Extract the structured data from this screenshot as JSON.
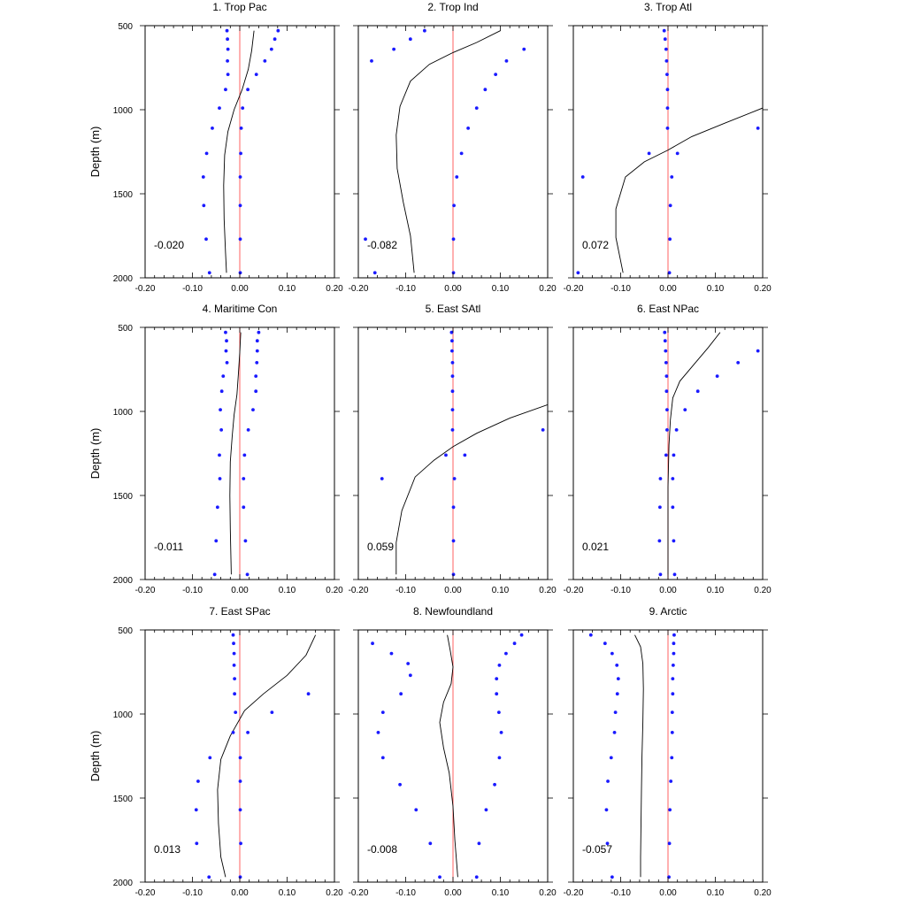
{
  "chart_data": {
    "type": "scatter",
    "ylabel": "Depth (m)",
    "ylim": [
      2000,
      500
    ],
    "xlim": [
      -0.2,
      0.2
    ],
    "x_ticklabels": [
      "-0.20",
      "-0.10",
      "0.00",
      "0.10",
      "0.20"
    ],
    "y_ticklabels": [
      "500",
      "1000",
      "1500",
      "2000"
    ],
    "x_ticks": [
      -0.2,
      -0.1,
      0.0,
      0.1,
      0.2
    ],
    "y_ticks": [
      500,
      1000,
      1500,
      2000
    ],
    "zero_line_color": "#ff6060",
    "point_color": "#1a1aff",
    "line_color": "#000000",
    "panels": [
      {
        "title": "1. Trop Pac",
        "annotation": "-0.020",
        "lower_points": [
          [
            -0.027,
            530
          ],
          [
            -0.026,
            580
          ],
          [
            -0.025,
            640
          ],
          [
            -0.026,
            710
          ],
          [
            -0.025,
            790
          ],
          [
            -0.03,
            880
          ],
          [
            -0.043,
            990
          ],
          [
            -0.058,
            1110
          ],
          [
            -0.07,
            1260
          ],
          [
            -0.077,
            1400
          ],
          [
            -0.076,
            1570
          ],
          [
            -0.071,
            1770
          ],
          [
            -0.064,
            1970
          ]
        ],
        "upper_points": [
          [
            0.081,
            530
          ],
          [
            0.074,
            580
          ],
          [
            0.067,
            640
          ],
          [
            0.053,
            710
          ],
          [
            0.035,
            790
          ],
          [
            0.017,
            880
          ],
          [
            0.006,
            990
          ],
          [
            0.003,
            1110
          ],
          [
            0.002,
            1260
          ],
          [
            0.001,
            1400
          ],
          [
            0.001,
            1570
          ],
          [
            0.001,
            1770
          ],
          [
            0.001,
            1970
          ]
        ],
        "line": [
          [
            0.03,
            530
          ],
          [
            0.025,
            650
          ],
          [
            0.018,
            760
          ],
          [
            0.005,
            880
          ],
          [
            -0.012,
            1000
          ],
          [
            -0.025,
            1130
          ],
          [
            -0.032,
            1270
          ],
          [
            -0.034,
            1450
          ],
          [
            -0.033,
            1650
          ],
          [
            -0.03,
            1850
          ],
          [
            -0.028,
            1970
          ]
        ]
      },
      {
        "title": "2. Trop Ind",
        "annotation": "-0.082",
        "lower_points": [
          [
            -0.06,
            530
          ],
          [
            -0.09,
            580
          ],
          [
            -0.125,
            640
          ],
          [
            -0.172,
            710
          ],
          [
            -0.185,
            1770
          ],
          [
            -0.165,
            1970
          ]
        ],
        "upper_points": [
          [
            0.15,
            640
          ],
          [
            0.113,
            710
          ],
          [
            0.09,
            790
          ],
          [
            0.068,
            880
          ],
          [
            0.05,
            990
          ],
          [
            0.032,
            1110
          ],
          [
            0.018,
            1260
          ],
          [
            0.008,
            1400
          ],
          [
            0.002,
            1570
          ],
          [
            0.001,
            1770
          ],
          [
            0.001,
            1970
          ]
        ],
        "line": [
          [
            0.1,
            530
          ],
          [
            0.05,
            600
          ],
          [
            0.0,
            660
          ],
          [
            -0.05,
            730
          ],
          [
            -0.09,
            830
          ],
          [
            -0.112,
            980
          ],
          [
            -0.12,
            1150
          ],
          [
            -0.118,
            1350
          ],
          [
            -0.105,
            1550
          ],
          [
            -0.09,
            1750
          ],
          [
            -0.082,
            1970
          ]
        ]
      },
      {
        "title": "3. Trop Atl",
        "annotation": "0.072",
        "lower_points": [
          [
            -0.008,
            530
          ],
          [
            -0.006,
            580
          ],
          [
            -0.004,
            640
          ],
          [
            -0.003,
            710
          ],
          [
            -0.002,
            790
          ],
          [
            -0.001,
            880
          ],
          [
            -0.001,
            990
          ],
          [
            -0.001,
            1110
          ],
          [
            -0.04,
            1260
          ],
          [
            -0.18,
            1400
          ],
          [
            -0.19,
            1970
          ]
        ],
        "upper_points": [
          [
            0.19,
            1110
          ],
          [
            0.02,
            1260
          ],
          [
            0.008,
            1400
          ],
          [
            0.005,
            1570
          ],
          [
            0.004,
            1770
          ],
          [
            0.003,
            1970
          ]
        ],
        "line": [
          [
            0.2,
            990
          ],
          [
            0.12,
            1080
          ],
          [
            0.05,
            1160
          ],
          [
            0.0,
            1240
          ],
          [
            -0.05,
            1310
          ],
          [
            -0.09,
            1400
          ],
          [
            -0.11,
            1590
          ],
          [
            -0.11,
            1760
          ],
          [
            -0.095,
            1970
          ]
        ]
      },
      {
        "title": "4. Maritime Con",
        "annotation": "-0.011",
        "lower_points": [
          [
            -0.03,
            530
          ],
          [
            -0.028,
            580
          ],
          [
            -0.029,
            640
          ],
          [
            -0.027,
            710
          ],
          [
            -0.035,
            790
          ],
          [
            -0.038,
            880
          ],
          [
            -0.041,
            990
          ],
          [
            -0.039,
            1110
          ],
          [
            -0.043,
            1260
          ],
          [
            -0.042,
            1400
          ],
          [
            -0.047,
            1570
          ],
          [
            -0.05,
            1770
          ],
          [
            -0.053,
            1970
          ]
        ],
        "upper_points": [
          [
            0.04,
            530
          ],
          [
            0.037,
            580
          ],
          [
            0.037,
            640
          ],
          [
            0.036,
            710
          ],
          [
            0.034,
            790
          ],
          [
            0.034,
            880
          ],
          [
            0.028,
            990
          ],
          [
            0.018,
            1110
          ],
          [
            0.01,
            1260
          ],
          [
            0.008,
            1400
          ],
          [
            0.008,
            1570
          ],
          [
            0.012,
            1770
          ],
          [
            0.016,
            1970
          ]
        ],
        "line": [
          [
            0.002,
            530
          ],
          [
            0.0,
            650
          ],
          [
            -0.003,
            780
          ],
          [
            -0.006,
            900
          ],
          [
            -0.012,
            1020
          ],
          [
            -0.016,
            1150
          ],
          [
            -0.02,
            1300
          ],
          [
            -0.021,
            1500
          ],
          [
            -0.02,
            1700
          ],
          [
            -0.018,
            1970
          ]
        ]
      },
      {
        "title": "5. East SAtl",
        "annotation": "0.059",
        "lower_points": [
          [
            -0.003,
            530
          ],
          [
            -0.002,
            580
          ],
          [
            -0.002,
            640
          ],
          [
            -0.001,
            710
          ],
          [
            -0.001,
            790
          ],
          [
            -0.001,
            880
          ],
          [
            -0.001,
            990
          ],
          [
            -0.001,
            1110
          ],
          [
            -0.015,
            1260
          ],
          [
            -0.15,
            1400
          ]
        ],
        "upper_points": [
          [
            0.19,
            1110
          ],
          [
            0.025,
            1260
          ],
          [
            0.003,
            1400
          ],
          [
            0.001,
            1570
          ],
          [
            0.001,
            1770
          ],
          [
            0.001,
            1970
          ]
        ],
        "line": [
          [
            0.2,
            960
          ],
          [
            0.12,
            1040
          ],
          [
            0.05,
            1130
          ],
          [
            0.0,
            1210
          ],
          [
            -0.04,
            1290
          ],
          [
            -0.08,
            1390
          ],
          [
            -0.108,
            1590
          ],
          [
            -0.12,
            1780
          ],
          [
            -0.12,
            1970
          ]
        ]
      },
      {
        "title": "6. East NPac",
        "annotation": "0.021",
        "lower_points": [
          [
            -0.007,
            530
          ],
          [
            -0.006,
            580
          ],
          [
            -0.005,
            640
          ],
          [
            -0.004,
            710
          ],
          [
            -0.003,
            790
          ],
          [
            -0.003,
            880
          ],
          [
            -0.002,
            990
          ],
          [
            -0.002,
            1110
          ],
          [
            -0.004,
            1260
          ],
          [
            -0.016,
            1400
          ],
          [
            -0.017,
            1570
          ],
          [
            -0.018,
            1770
          ],
          [
            -0.016,
            1970
          ]
        ],
        "upper_points": [
          [
            0.19,
            640
          ],
          [
            0.148,
            710
          ],
          [
            0.104,
            790
          ],
          [
            0.063,
            880
          ],
          [
            0.036,
            990
          ],
          [
            0.018,
            1110
          ],
          [
            0.012,
            1260
          ],
          [
            0.01,
            1400
          ],
          [
            0.01,
            1570
          ],
          [
            0.012,
            1770
          ],
          [
            0.014,
            1970
          ]
        ],
        "line": [
          [
            0.11,
            530
          ],
          [
            0.085,
            620
          ],
          [
            0.055,
            720
          ],
          [
            0.025,
            820
          ],
          [
            0.01,
            920
          ],
          [
            0.005,
            1050
          ],
          [
            0.002,
            1200
          ],
          [
            0.0,
            1450
          ],
          [
            0.0,
            1700
          ],
          [
            0.0,
            1970
          ]
        ]
      },
      {
        "title": "7. East SPac",
        "annotation": "0.013",
        "lower_points": [
          [
            -0.014,
            530
          ],
          [
            -0.013,
            580
          ],
          [
            -0.012,
            640
          ],
          [
            -0.012,
            710
          ],
          [
            -0.011,
            790
          ],
          [
            -0.011,
            880
          ],
          [
            -0.009,
            990
          ],
          [
            -0.014,
            1110
          ],
          [
            -0.063,
            1260
          ],
          [
            -0.088,
            1400
          ],
          [
            -0.092,
            1570
          ],
          [
            -0.091,
            1770
          ],
          [
            -0.065,
            1970
          ]
        ],
        "upper_points": [
          [
            0.145,
            880
          ],
          [
            0.068,
            990
          ],
          [
            0.017,
            1110
          ],
          [
            0.001,
            1260
          ],
          [
            0.001,
            1400
          ],
          [
            0.001,
            1570
          ],
          [
            0.002,
            1770
          ],
          [
            0.001,
            1970
          ]
        ],
        "line": [
          [
            0.16,
            530
          ],
          [
            0.14,
            650
          ],
          [
            0.1,
            770
          ],
          [
            0.05,
            880
          ],
          [
            0.01,
            980
          ],
          [
            -0.02,
            1130
          ],
          [
            -0.04,
            1270
          ],
          [
            -0.047,
            1450
          ],
          [
            -0.045,
            1650
          ],
          [
            -0.04,
            1850
          ],
          [
            -0.03,
            1970
          ]
        ]
      },
      {
        "title": "8. Newfoundland",
        "annotation": "-0.008",
        "lower_points": [
          [
            -0.17,
            580
          ],
          [
            -0.13,
            640
          ],
          [
            -0.095,
            700
          ],
          [
            -0.09,
            770
          ],
          [
            -0.11,
            880
          ],
          [
            -0.148,
            990
          ],
          [
            -0.158,
            1110
          ],
          [
            -0.148,
            1260
          ],
          [
            -0.112,
            1420
          ],
          [
            -0.078,
            1570
          ],
          [
            -0.048,
            1770
          ],
          [
            -0.028,
            1970
          ]
        ],
        "upper_points": [
          [
            0.145,
            530
          ],
          [
            0.13,
            580
          ],
          [
            0.112,
            640
          ],
          [
            0.098,
            710
          ],
          [
            0.092,
            790
          ],
          [
            0.092,
            880
          ],
          [
            0.097,
            990
          ],
          [
            0.102,
            1110
          ],
          [
            0.098,
            1260
          ],
          [
            0.088,
            1420
          ],
          [
            0.07,
            1570
          ],
          [
            0.055,
            1770
          ],
          [
            0.05,
            1970
          ]
        ],
        "line": [
          [
            -0.012,
            530
          ],
          [
            -0.006,
            620
          ],
          [
            0.0,
            720
          ],
          [
            -0.004,
            820
          ],
          [
            -0.02,
            930
          ],
          [
            -0.028,
            1050
          ],
          [
            -0.02,
            1200
          ],
          [
            -0.008,
            1350
          ],
          [
            0.0,
            1550
          ],
          [
            0.004,
            1750
          ],
          [
            0.01,
            1970
          ]
        ]
      },
      {
        "title": "9. Arctic",
        "annotation": "-0.057",
        "lower_points": [
          [
            -0.163,
            530
          ],
          [
            -0.133,
            580
          ],
          [
            -0.118,
            640
          ],
          [
            -0.108,
            710
          ],
          [
            -0.105,
            790
          ],
          [
            -0.107,
            880
          ],
          [
            -0.111,
            990
          ],
          [
            -0.113,
            1110
          ],
          [
            -0.12,
            1260
          ],
          [
            -0.127,
            1400
          ],
          [
            -0.13,
            1570
          ],
          [
            -0.128,
            1770
          ],
          [
            -0.118,
            1970
          ]
        ],
        "upper_points": [
          [
            0.013,
            530
          ],
          [
            0.012,
            580
          ],
          [
            0.012,
            640
          ],
          [
            0.011,
            710
          ],
          [
            0.01,
            790
          ],
          [
            0.01,
            880
          ],
          [
            0.009,
            990
          ],
          [
            0.009,
            1110
          ],
          [
            0.008,
            1260
          ],
          [
            0.006,
            1400
          ],
          [
            0.004,
            1570
          ],
          [
            0.003,
            1770
          ],
          [
            0.002,
            1970
          ]
        ],
        "line": [
          [
            -0.07,
            530
          ],
          [
            -0.058,
            600
          ],
          [
            -0.053,
            700
          ],
          [
            -0.052,
            850
          ],
          [
            -0.053,
            1050
          ],
          [
            -0.055,
            1250
          ],
          [
            -0.056,
            1450
          ],
          [
            -0.057,
            1650
          ],
          [
            -0.058,
            1850
          ],
          [
            -0.058,
            1970
          ]
        ]
      }
    ]
  }
}
